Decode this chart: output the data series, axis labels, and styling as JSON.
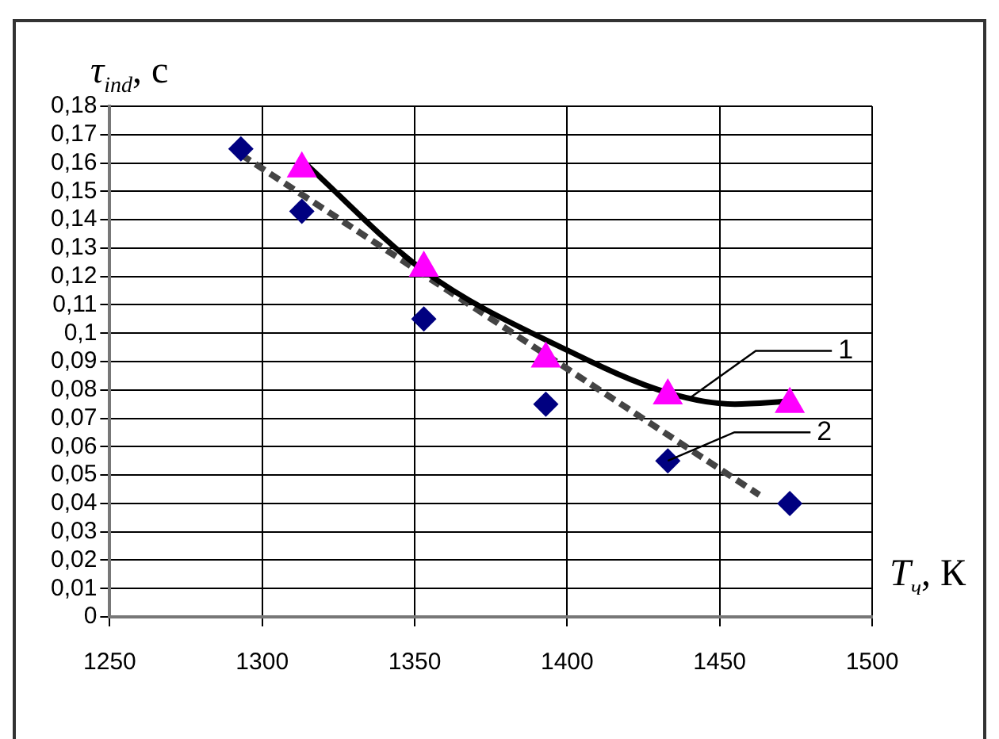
{
  "chart_data": {
    "type": "scatter",
    "xlabel": "T$_{ч}$, К",
    "ylabel": "τ$_{ind}$, с",
    "xlim": [
      1250,
      1500
    ],
    "xticks": [
      1250,
      1300,
      1350,
      1400,
      1450,
      1500
    ],
    "ylim": [
      0,
      0.18
    ],
    "yticks": [
      0,
      {
        "value": 0.01,
        "label": "0,01"
      },
      {
        "value": 0.02,
        "label": "0,02"
      },
      {
        "value": 0.03,
        "label": "0,03"
      },
      {
        "value": 0.04,
        "label": "0,04"
      },
      {
        "value": 0.05,
        "label": "0,05"
      },
      {
        "value": 0.06,
        "label": "0,06"
      },
      {
        "value": 0.07,
        "label": "0,07"
      },
      {
        "value": 0.08,
        "label": "0,08"
      },
      {
        "value": 0.09,
        "label": "0,09"
      },
      {
        "value": 0.1,
        "label": "0,1"
      },
      {
        "value": 0.11,
        "label": "0,11"
      },
      {
        "value": 0.12,
        "label": "0,12"
      },
      {
        "value": 0.13,
        "label": "0,13"
      },
      {
        "value": 0.14,
        "label": "0,14"
      },
      {
        "value": 0.15,
        "label": "0,15"
      },
      {
        "value": 0.16,
        "label": "0,16"
      },
      {
        "value": 0.17,
        "label": "0,17"
      },
      {
        "value": 0.18,
        "label": "0,18"
      }
    ],
    "grid": true,
    "legend": false,
    "x": [
      1293,
      1313,
      1353,
      1393,
      1433,
      1473
    ],
    "series": [
      {
        "type": "scatter",
        "marker": "triangle",
        "color": "#ff00ff",
        "x": [
          1313,
          1353,
          1393,
          1433,
          1473
        ],
        "values": [
          0.158,
          0.123,
          0.091,
          0.078,
          0.075
        ]
      },
      {
        "type": "scatter",
        "marker": "diamond",
        "color": "#000080",
        "values": [
          0.165,
          0.143,
          0.105,
          0.075,
          0.055,
          0.04
        ]
      },
      {
        "type": "line",
        "marker": "none",
        "line_style": "solid",
        "color": "#000000",
        "x": [
          1313,
          1353,
          1400,
          1433,
          1455,
          1473
        ],
        "values": [
          0.161,
          0.122,
          0.094,
          0.079,
          0.075,
          0.076
        ]
      },
      {
        "type": "line",
        "marker": "none",
        "line_style": "dashed",
        "color": "#444444",
        "x": [
          1293,
          1463
        ],
        "values": [
          0.163,
          0.043
        ]
      }
    ],
    "annotations": [
      {
        "text": "1",
        "x": 1440,
        "y": 0.077
      },
      {
        "text": "2",
        "x": 1433,
        "y": 0.055
      }
    ]
  }
}
